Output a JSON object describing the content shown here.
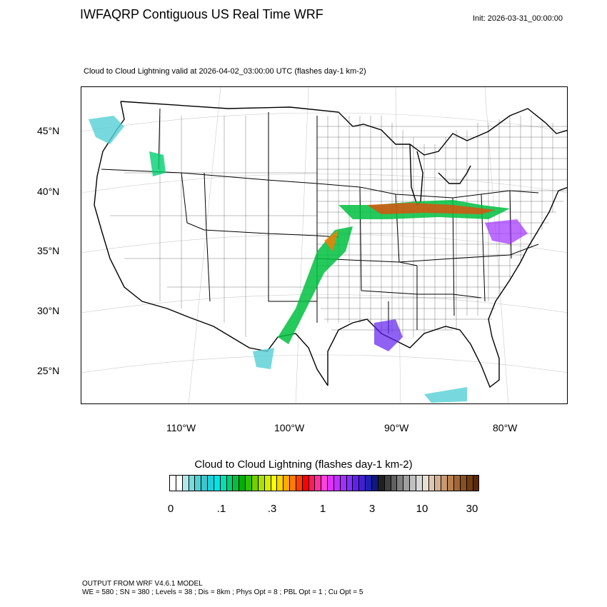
{
  "header": {
    "title": "IWFAQRP Contiguous US Real Time WRF",
    "init": "Init: 2026-03-31_00:00:00",
    "subtitle": "Cloud to Cloud Lightning valid at 2026-04-02_03:00:00 UTC   (flashes day-1 km-2)"
  },
  "map": {
    "lat_labels": [
      "45°N",
      "40°N",
      "35°N",
      "30°N",
      "25°N"
    ],
    "lon_labels": [
      "110°W",
      "100°W",
      "90°W",
      "80°W"
    ],
    "colors": {
      "land_border": "#000000",
      "county_border": "#000000",
      "graticule": "#cccccc"
    }
  },
  "colorbar": {
    "title": "Cloud to Cloud Lightning  (flashes day-1 km-2)",
    "tick_labels": [
      "0",
      ".1",
      ".3",
      "1",
      "3",
      "10",
      "30"
    ],
    "colors": [
      "#ffffff",
      "#ffffff",
      "#aee8e8",
      "#7adada",
      "#55cfd4",
      "#36c7cf",
      "#1bd0d9",
      "#00e5e5",
      "#00e0b0",
      "#00d070",
      "#00c040",
      "#00b000",
      "#30c000",
      "#70d000",
      "#a8e000",
      "#d8ee00",
      "#ffff00",
      "#ffd400",
      "#ffaa00",
      "#ff7a00",
      "#ff3c00",
      "#ff0000",
      "#ff1a60",
      "#ff30a0",
      "#ff40e0",
      "#e030ff",
      "#c030ff",
      "#a030ff",
      "#8030ff",
      "#6020f0",
      "#4020d0",
      "#2020b0",
      "#101880",
      "#202020",
      "#404040",
      "#606060",
      "#808080",
      "#a0a0a0",
      "#c0c0c0",
      "#d8d8d8",
      "#e8ddd0",
      "#e0c8b0",
      "#d4b090",
      "#c89870",
      "#b88050",
      "#a06838",
      "#885020",
      "#703c10",
      "#582808"
    ]
  },
  "footer": {
    "line1": "OUTPUT FROM WRF V4.6.1 MODEL",
    "line2": "WE = 580 ; SN = 380 ; Levels = 38 ; Dis = 8km ; Phys Opt = 8 ; PBL Opt = 1 ; Cu Opt = 5"
  }
}
